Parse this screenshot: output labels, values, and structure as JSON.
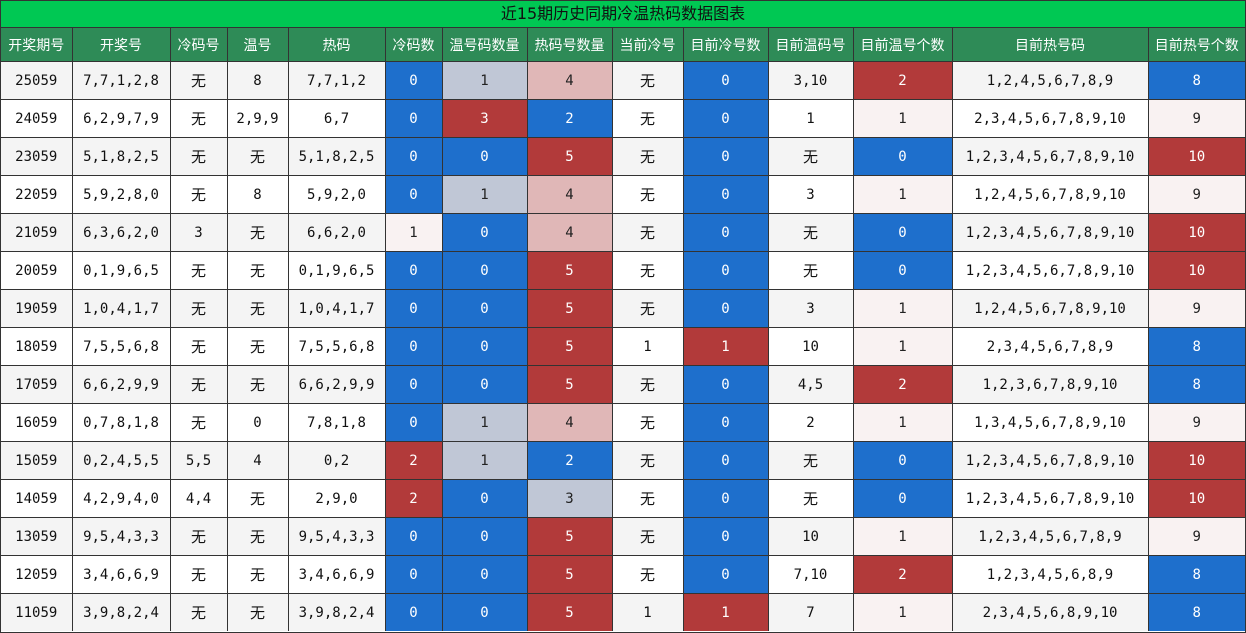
{
  "title": "近15期历史同期冷温热码数据图表",
  "colors": {
    "title_bg": "#00c853",
    "header_bg": "#2e8b57",
    "blue": "#1e6fcc",
    "red": "#b23a3a",
    "pink": "#e0b7b7",
    "gray": "#c0c7d6",
    "light": "#f9f2f2"
  },
  "headers": [
    "开奖期号",
    "开奖号",
    "冷码号",
    "温号",
    "热码",
    "冷码数",
    "温号码数量",
    "热码号数量",
    "当前冷号",
    "目前冷号数",
    "目前温码号",
    "目前温号个数",
    "目前热号码",
    "目前热号个数"
  ],
  "rows": [
    [
      "25059",
      "7,7,1,2,8",
      "无",
      "8",
      "7,7,1,2",
      "0",
      "1",
      "4",
      "无",
      "0",
      "3,10",
      "2",
      "1,2,4,5,6,7,8,9",
      "8"
    ],
    [
      "24059",
      "6,2,9,7,9",
      "无",
      "2,9,9",
      "6,7",
      "0",
      "3",
      "2",
      "无",
      "0",
      "1",
      "1",
      "2,3,4,5,6,7,8,9,10",
      "9"
    ],
    [
      "23059",
      "5,1,8,2,5",
      "无",
      "无",
      "5,1,8,2,5",
      "0",
      "0",
      "5",
      "无",
      "0",
      "无",
      "0",
      "1,2,3,4,5,6,7,8,9,10",
      "10"
    ],
    [
      "22059",
      "5,9,2,8,0",
      "无",
      "8",
      "5,9,2,0",
      "0",
      "1",
      "4",
      "无",
      "0",
      "3",
      "1",
      "1,2,4,5,6,7,8,9,10",
      "9"
    ],
    [
      "21059",
      "6,3,6,2,0",
      "3",
      "无",
      "6,6,2,0",
      "1",
      "0",
      "4",
      "无",
      "0",
      "无",
      "0",
      "1,2,3,4,5,6,7,8,9,10",
      "10"
    ],
    [
      "20059",
      "0,1,9,6,5",
      "无",
      "无",
      "0,1,9,6,5",
      "0",
      "0",
      "5",
      "无",
      "0",
      "无",
      "0",
      "1,2,3,4,5,6,7,8,9,10",
      "10"
    ],
    [
      "19059",
      "1,0,4,1,7",
      "无",
      "无",
      "1,0,4,1,7",
      "0",
      "0",
      "5",
      "无",
      "0",
      "3",
      "1",
      "1,2,4,5,6,7,8,9,10",
      "9"
    ],
    [
      "18059",
      "7,5,5,6,8",
      "无",
      "无",
      "7,5,5,6,8",
      "0",
      "0",
      "5",
      "1",
      "1",
      "10",
      "1",
      "2,3,4,5,6,7,8,9",
      "8"
    ],
    [
      "17059",
      "6,6,2,9,9",
      "无",
      "无",
      "6,6,2,9,9",
      "0",
      "0",
      "5",
      "无",
      "0",
      "4,5",
      "2",
      "1,2,3,6,7,8,9,10",
      "8"
    ],
    [
      "16059",
      "0,7,8,1,8",
      "无",
      "0",
      "7,8,1,8",
      "0",
      "1",
      "4",
      "无",
      "0",
      "2",
      "1",
      "1,3,4,5,6,7,8,9,10",
      "9"
    ],
    [
      "15059",
      "0,2,4,5,5",
      "5,5",
      "4",
      "0,2",
      "2",
      "1",
      "2",
      "无",
      "0",
      "无",
      "0",
      "1,2,3,4,5,6,7,8,9,10",
      "10"
    ],
    [
      "14059",
      "4,2,9,4,0",
      "4,4",
      "无",
      "2,9,0",
      "2",
      "0",
      "3",
      "无",
      "0",
      "无",
      "0",
      "1,2,3,4,5,6,7,8,9,10",
      "10"
    ],
    [
      "13059",
      "9,5,4,3,3",
      "无",
      "无",
      "9,5,4,3,3",
      "0",
      "0",
      "5",
      "无",
      "0",
      "10",
      "1",
      "1,2,3,4,5,6,7,8,9",
      "9"
    ],
    [
      "12059",
      "3,4,6,6,9",
      "无",
      "无",
      "3,4,6,6,9",
      "0",
      "0",
      "5",
      "无",
      "0",
      "7,10",
      "2",
      "1,2,3,4,5,6,8,9",
      "8"
    ],
    [
      "11059",
      "3,9,8,2,4",
      "无",
      "无",
      "3,9,8,2,4",
      "0",
      "0",
      "5",
      "1",
      "1",
      "7",
      "1",
      "2,3,4,5,6,8,9,10",
      "8"
    ]
  ]
}
